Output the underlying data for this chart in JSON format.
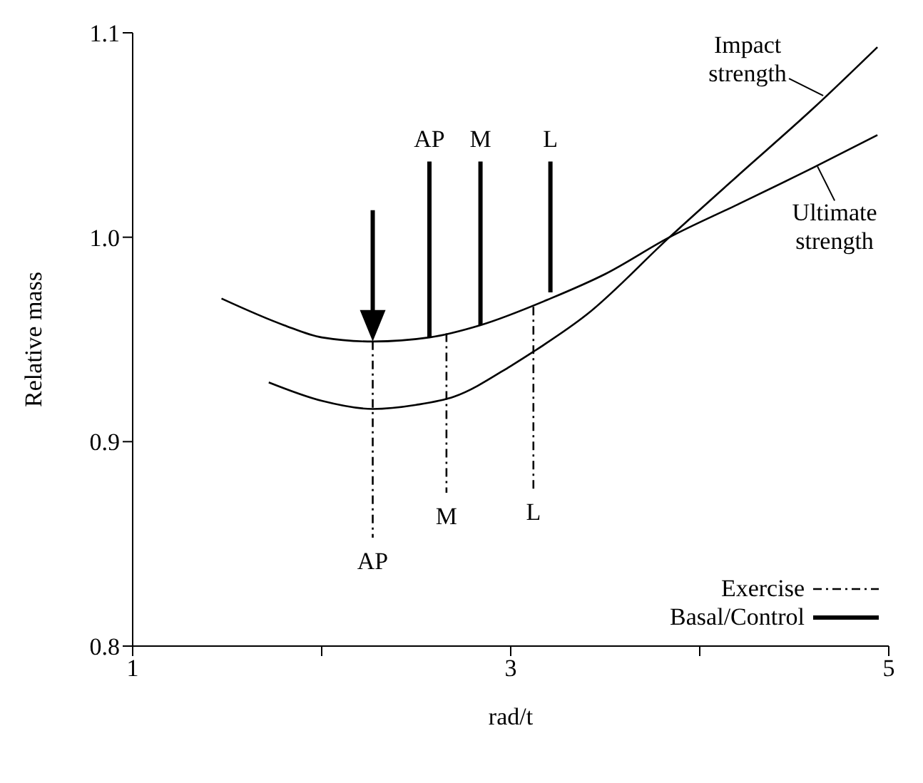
{
  "chart_data": {
    "type": "line",
    "xlabel": "rad/t",
    "ylabel": "Relative mass",
    "xlim": [
      1,
      5
    ],
    "xticks": [
      1,
      {
        "value": 2,
        "label": null
      },
      3,
      {
        "value": 4,
        "label": null
      },
      5
    ],
    "ylim": [
      0.8,
      1.1
    ],
    "yticks": [
      0.8,
      0.9,
      {
        "value": 1.0,
        "label": "1.0"
      },
      1.1
    ],
    "grid": false,
    "legend": "bottom right",
    "marker": "none",
    "series": [
      {
        "name": "Impact strength",
        "color": "#000000",
        "line_style": "solid",
        "x": [
          1.72,
          2.0,
          2.27,
          2.5,
          2.7,
          3.0,
          3.12,
          3.4,
          3.84,
          4.2,
          4.6,
          4.94
        ],
        "values": [
          0.929,
          0.92,
          0.916,
          0.918,
          0.922,
          0.937,
          0.944,
          0.962,
          1.0,
          1.03,
          1.063,
          1.093
        ]
      },
      {
        "name": "Ultimate strength",
        "color": "#000000",
        "line_style": "solid",
        "x": [
          1.47,
          1.8,
          2.0,
          2.27,
          2.57,
          2.84,
          3.21,
          3.5,
          3.84,
          4.2,
          4.6,
          4.94
        ],
        "values": [
          0.97,
          0.957,
          0.951,
          0.949,
          0.951,
          0.957,
          0.97,
          0.982,
          1.0,
          1.016,
          1.034,
          1.05
        ]
      },
      {
        "name": "Exercise",
        "color": "#000000",
        "line_style": "dashed",
        "x": [
          2.27,
          2.27,
          null,
          2.66,
          2.66,
          null,
          3.12,
          3.12
        ],
        "values": [
          0.949,
          0.853,
          null,
          0.953,
          0.875,
          null,
          0.966,
          0.877
        ]
      },
      {
        "name": "Basal/Control",
        "color": "#000000",
        "line_style": "solid",
        "x": [
          2.57,
          2.57,
          null,
          2.84,
          2.84,
          null,
          3.21,
          3.21
        ],
        "values": [
          0.951,
          1.037,
          null,
          0.957,
          1.037,
          null,
          0.973,
          1.037
        ]
      }
    ],
    "annotations": [
      {
        "text": "AP",
        "x": 2.57,
        "y": 1.037
      },
      {
        "text": "M",
        "x": 2.84,
        "y": 1.037
      },
      {
        "text": "L",
        "x": 3.21,
        "y": 1.037
      },
      {
        "text": "AP",
        "x": 2.27,
        "y": 0.853
      },
      {
        "text": "M",
        "x": 2.66,
        "y": 0.875
      },
      {
        "text": "L",
        "x": 3.12,
        "y": 0.877
      }
    ]
  }
}
